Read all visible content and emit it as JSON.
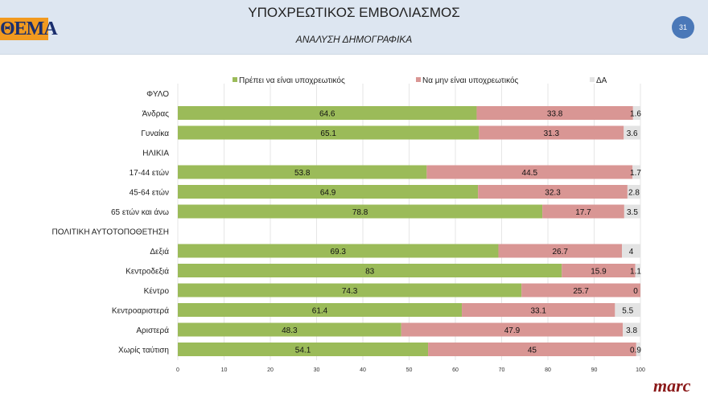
{
  "header": {
    "title": "ΥΠΟΧΡΕΩΤΙΚΟΣ ΕΜΒΟΛΙΑΣΜΟΣ",
    "subtitle": "ΑΝΑΛΥΣΗ ΔΗΜΟΓΡΑΦΙΚΑ",
    "logo": "ΘΕΜΑ",
    "page_number": "31"
  },
  "footer": {
    "brand": "marc"
  },
  "chart_data": {
    "type": "bar",
    "orientation": "horizontal",
    "stacked": true,
    "title": "",
    "xlabel": "",
    "ylabel": "",
    "xlim": [
      0,
      100
    ],
    "xticks": [
      "0",
      "10",
      "20",
      "30",
      "40",
      "50",
      "60",
      "70",
      "80",
      "90",
      "100"
    ],
    "grid": true,
    "legend": "top",
    "colors": [
      "#9bbb59",
      "#d99694",
      "#e3e3e3"
    ],
    "categories": [
      "ΦΥΛΟ",
      "Άνδρας",
      "Γυναίκα",
      "ΗΛΙΚΙΑ",
      "17-44 ετών",
      "45-64 ετών",
      "65 ετών και άνω",
      "ΠΟΛΙΤΙΚΗ ΑΥΤΟΤΟΠΟΘΕΤΗΣΗ",
      "Δεξιά",
      "Κεντροδεξιά",
      "Κέντρο",
      "Κεντροαριστερά",
      "Αριστερά",
      "Χωρίς ταύτιση"
    ],
    "series": [
      {
        "name": "Πρέπει να είναι υποχρεωτικός",
        "values": [
          null,
          64.6,
          65.1,
          null,
          53.8,
          64.9,
          78.8,
          null,
          69.3,
          83,
          74.3,
          61.4,
          48.3,
          54.1
        ]
      },
      {
        "name": "Να μην είναι υποχρεωτικός",
        "values": [
          null,
          33.8,
          31.3,
          null,
          44.5,
          32.3,
          17.7,
          null,
          26.7,
          15.9,
          25.7,
          33.1,
          47.9,
          45
        ]
      },
      {
        "name": "ΔΑ",
        "values": [
          null,
          1.6,
          3.6,
          null,
          1.7,
          2.8,
          3.5,
          null,
          4,
          1.1,
          0,
          5.5,
          3.8,
          0.9
        ]
      }
    ]
  }
}
